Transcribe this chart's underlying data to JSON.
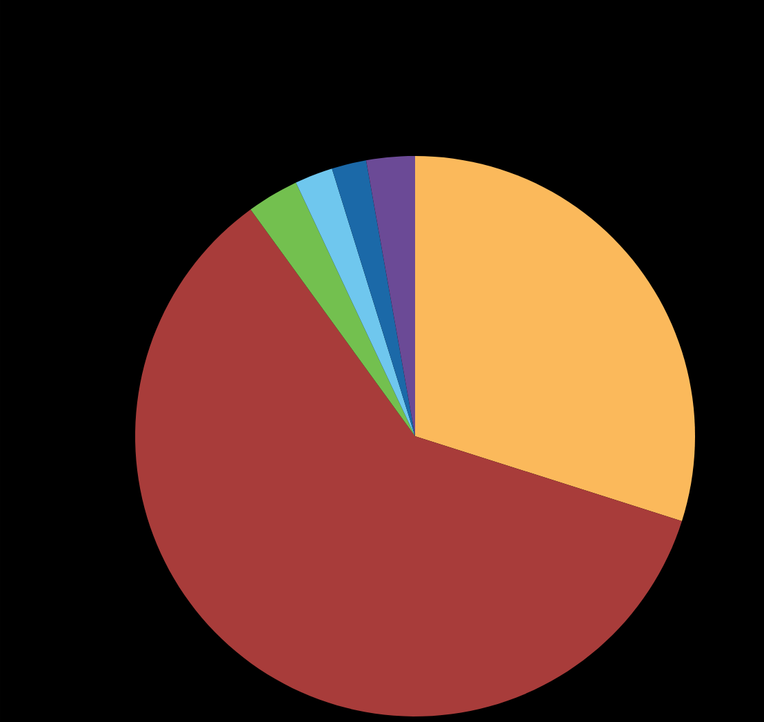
{
  "chart_data": {
    "type": "pie",
    "categories": [
      null,
      null,
      null,
      null,
      null,
      null
    ],
    "values": [
      29.9,
      60.1,
      3.0,
      2.2,
      2.0,
      2.8
    ],
    "colors": [
      "#fbb95b",
      "#a83c3a",
      "#73c04f",
      "#6fc7ee",
      "#1b69a8",
      "#6b4a96"
    ]
  }
}
